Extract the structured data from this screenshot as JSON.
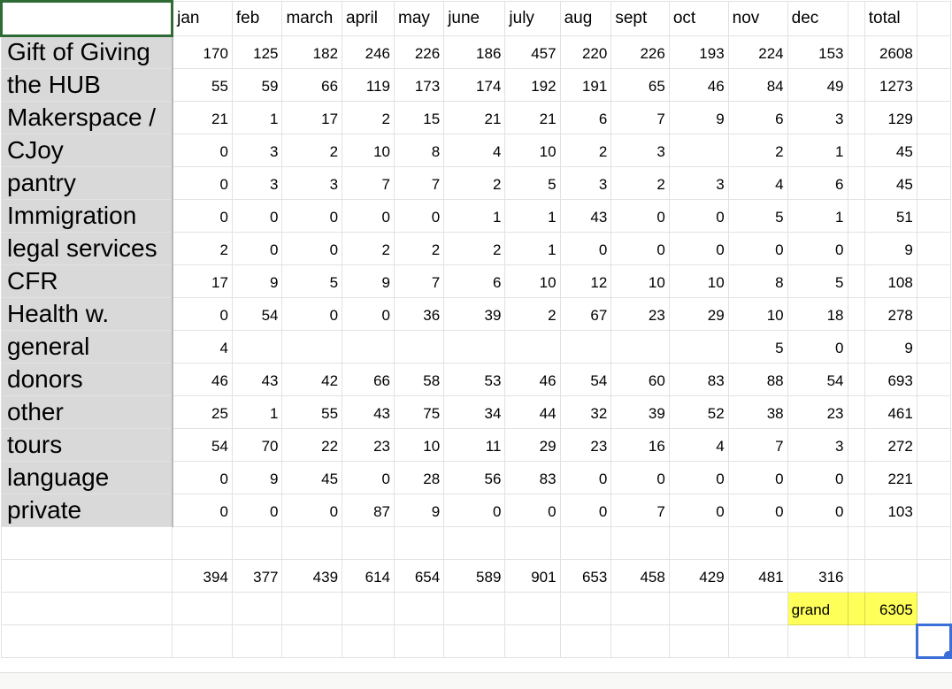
{
  "header": [
    "jan",
    "feb",
    "march",
    "april",
    "may",
    "june",
    "july",
    "aug",
    "sept",
    "oct",
    "nov",
    "dec",
    "",
    "total"
  ],
  "rows": [
    {
      "label": "Gift of Giving",
      "values": [
        "170",
        "125",
        "182",
        "246",
        "226",
        "186",
        "457",
        "220",
        "226",
        "193",
        "224",
        "153",
        "",
        "2608"
      ]
    },
    {
      "label": "the HUB",
      "values": [
        "55",
        "59",
        "66",
        "119",
        "173",
        "174",
        "192",
        "191",
        "65",
        "46",
        "84",
        "49",
        "",
        "1273"
      ]
    },
    {
      "label": "Makerspace /",
      "values": [
        "21",
        "1",
        "17",
        "2",
        "15",
        "21",
        "21",
        "6",
        "7",
        "9",
        "6",
        "3",
        "",
        "129"
      ]
    },
    {
      "label": "CJoy",
      "values": [
        "0",
        "3",
        "2",
        "10",
        "8",
        "4",
        "10",
        "2",
        "3",
        "",
        "2",
        "1",
        "",
        "45"
      ]
    },
    {
      "label": "pantry",
      "values": [
        "0",
        "3",
        "3",
        "7",
        "7",
        "2",
        "5",
        "3",
        "2",
        "3",
        "4",
        "6",
        "",
        "45"
      ]
    },
    {
      "label": "Immigration",
      "values": [
        "0",
        "0",
        "0",
        "0",
        "0",
        "1",
        "1",
        "43",
        "0",
        "0",
        "5",
        "1",
        "",
        "51"
      ]
    },
    {
      "label": "legal services",
      "values": [
        "2",
        "0",
        "0",
        "2",
        "2",
        "2",
        "1",
        "0",
        "0",
        "0",
        "0",
        "0",
        "",
        "9"
      ]
    },
    {
      "label": "CFR",
      "values": [
        "17",
        "9",
        "5",
        "9",
        "7",
        "6",
        "10",
        "12",
        "10",
        "10",
        "8",
        "5",
        "",
        "108"
      ]
    },
    {
      "label": "Health w.",
      "values": [
        "0",
        "54",
        "0",
        "0",
        "36",
        "39",
        "2",
        "67",
        "23",
        "29",
        "10",
        "18",
        "",
        "278"
      ]
    },
    {
      "label": "general",
      "values": [
        "4",
        "",
        "",
        "",
        "",
        "",
        "",
        "",
        "",
        "",
        "5",
        "0",
        "",
        "9"
      ]
    },
    {
      "label": "donors",
      "values": [
        "46",
        "43",
        "42",
        "66",
        "58",
        "53",
        "46",
        "54",
        "60",
        "83",
        "88",
        "54",
        "",
        "693"
      ]
    },
    {
      "label": "other",
      "values": [
        "25",
        "1",
        "55",
        "43",
        "75",
        "34",
        "44",
        "32",
        "39",
        "52",
        "38",
        "23",
        "",
        "461"
      ]
    },
    {
      "label": "tours",
      "values": [
        "54",
        "70",
        "22",
        "23",
        "10",
        "11",
        "29",
        "23",
        "16",
        "4",
        "7",
        "3",
        "",
        "272"
      ]
    },
    {
      "label": "language",
      "values": [
        "0",
        "9",
        "45",
        "0",
        "28",
        "56",
        "83",
        "0",
        "0",
        "0",
        "0",
        "0",
        "",
        "221"
      ]
    },
    {
      "label": "private",
      "values": [
        "0",
        "0",
        "0",
        "87",
        "9",
        "0",
        "0",
        "0",
        "7",
        "0",
        "0",
        "0",
        "",
        "103"
      ]
    }
  ],
  "monthly_totals": [
    "394",
    "377",
    "439",
    "614",
    "654",
    "589",
    "901",
    "653",
    "458",
    "429",
    "481",
    "316"
  ],
  "grand": {
    "label": "grand",
    "value": "6305",
    "highlight_color": "#ffff5a"
  },
  "colors": {
    "label_bg": "#d9d9d9",
    "selection": "#3a6fd8",
    "active_cell": "#2e6b35"
  }
}
